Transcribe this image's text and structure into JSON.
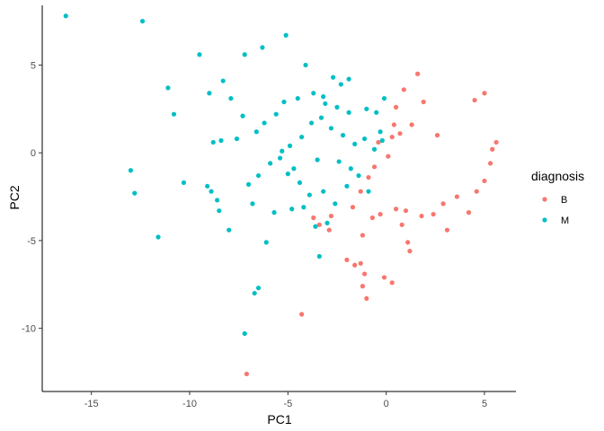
{
  "chart_data": {
    "type": "scatter",
    "title": "",
    "xlabel": "PC1",
    "ylabel": "PC2",
    "xlim": [
      -17.5,
      6.6
    ],
    "ylim": [
      -13.6,
      8.4
    ],
    "x_ticks": [
      -15,
      -10,
      -5,
      0,
      5
    ],
    "y_ticks": [
      5,
      0,
      -5,
      -10
    ],
    "x_tick_labels": [
      "-15",
      "-10",
      "-5",
      "0",
      "5"
    ],
    "y_tick_labels": [
      "5",
      "0",
      "-5",
      "-10"
    ],
    "grid": false,
    "legend": {
      "title": "diagnosis",
      "position": "right"
    },
    "series": [
      {
        "name": "B",
        "color": "#F8766D",
        "points": [
          [
            -7.1,
            -12.6
          ],
          [
            -4.3,
            -9.2
          ],
          [
            -2.0,
            -6.1
          ],
          [
            -1.6,
            -6.4
          ],
          [
            -1.3,
            -6.3
          ],
          [
            -1.1,
            -6.9
          ],
          [
            -1.2,
            -7.6
          ],
          [
            -1.0,
            -8.3
          ],
          [
            -0.1,
            -7.1
          ],
          [
            0.3,
            -7.4
          ],
          [
            -3.4,
            -4.1
          ],
          [
            -2.9,
            -4.4
          ],
          [
            -1.2,
            -4.7
          ],
          [
            0.8,
            -4.1
          ],
          [
            1.1,
            -5.1
          ],
          [
            1.2,
            -5.6
          ],
          [
            -3.7,
            -3.7
          ],
          [
            -2.8,
            -3.6
          ],
          [
            -1.7,
            -3.1
          ],
          [
            -1.3,
            -2.2
          ],
          [
            -0.9,
            -1.4
          ],
          [
            -0.6,
            -0.8
          ],
          [
            0.1,
            -0.2
          ],
          [
            0.3,
            0.9
          ],
          [
            0.4,
            1.6
          ],
          [
            0.5,
            2.6
          ],
          [
            0.9,
            3.6
          ],
          [
            1.6,
            4.5
          ],
          [
            1.9,
            2.9
          ],
          [
            4.5,
            3.0
          ],
          [
            5.0,
            3.4
          ],
          [
            -0.4,
            0.6
          ],
          [
            1.8,
            -3.6
          ],
          [
            2.4,
            -3.5
          ],
          [
            2.9,
            -2.9
          ],
          [
            3.1,
            -4.4
          ],
          [
            3.6,
            -2.5
          ],
          [
            4.2,
            -3.4
          ],
          [
            4.6,
            -2.2
          ],
          [
            5.0,
            -1.6
          ],
          [
            5.3,
            -0.6
          ],
          [
            5.6,
            0.6
          ],
          [
            5.4,
            0.2
          ],
          [
            -0.7,
            -3.7
          ],
          [
            -0.3,
            -3.5
          ],
          [
            0.5,
            -3.2
          ],
          [
            1.0,
            -3.3
          ],
          [
            0.7,
            1.1
          ],
          [
            1.3,
            1.6
          ],
          [
            2.6,
            1.0
          ]
        ]
      },
      {
        "name": "M",
        "color": "#00BFC4",
        "points": [
          [
            -16.3,
            7.8
          ],
          [
            -12.4,
            7.5
          ],
          [
            -9.5,
            5.6
          ],
          [
            -7.2,
            5.6
          ],
          [
            -6.3,
            6.0
          ],
          [
            -5.1,
            6.7
          ],
          [
            -11.1,
            3.7
          ],
          [
            -10.8,
            2.2
          ],
          [
            -9.0,
            3.4
          ],
          [
            -13.0,
            -1.0
          ],
          [
            -12.8,
            -2.3
          ],
          [
            -11.6,
            -4.8
          ],
          [
            -10.3,
            -1.7
          ],
          [
            -9.1,
            -1.9
          ],
          [
            -8.9,
            -2.2
          ],
          [
            -8.6,
            -2.7
          ],
          [
            -8.5,
            -3.3
          ],
          [
            -8.0,
            -4.4
          ],
          [
            -7.2,
            -10.3
          ],
          [
            -6.7,
            -8.0
          ],
          [
            -6.5,
            -7.7
          ],
          [
            -6.1,
            -5.1
          ],
          [
            -5.7,
            -3.4
          ],
          [
            -4.8,
            -3.2
          ],
          [
            -4.2,
            -3.1
          ],
          [
            -3.6,
            -4.2
          ],
          [
            -3.4,
            -5.9
          ],
          [
            -3.0,
            -4.0
          ],
          [
            -8.8,
            0.6
          ],
          [
            -8.4,
            0.7
          ],
          [
            -7.6,
            0.8
          ],
          [
            -7.3,
            2.1
          ],
          [
            -7.9,
            3.1
          ],
          [
            -8.3,
            4.1
          ],
          [
            -4.1,
            5.0
          ],
          [
            -3.2,
            3.2
          ],
          [
            -2.7,
            4.3
          ],
          [
            -2.3,
            3.9
          ],
          [
            -1.9,
            4.2
          ],
          [
            -0.1,
            3.1
          ],
          [
            -6.8,
            -2.9
          ],
          [
            -7.0,
            -1.8
          ],
          [
            -6.5,
            -1.3
          ],
          [
            -5.9,
            -0.6
          ],
          [
            -5.4,
            -0.3
          ],
          [
            -4.9,
            0.4
          ],
          [
            -4.3,
            0.9
          ],
          [
            -3.8,
            1.7
          ],
          [
            -3.3,
            2.0
          ],
          [
            -2.8,
            1.4
          ],
          [
            -2.2,
            1.0
          ],
          [
            -1.6,
            0.5
          ],
          [
            -1.1,
            0.8
          ],
          [
            -0.6,
            0.2
          ],
          [
            -0.3,
            1.2
          ],
          [
            -1.9,
            2.3
          ],
          [
            -2.5,
            2.6
          ],
          [
            -3.1,
            2.8
          ],
          [
            -3.7,
            3.4
          ],
          [
            -4.5,
            3.1
          ],
          [
            -5.2,
            2.9
          ],
          [
            -5.6,
            2.2
          ],
          [
            -6.2,
            1.7
          ],
          [
            -6.6,
            1.2
          ],
          [
            -5.0,
            -1.2
          ],
          [
            -4.4,
            -1.7
          ],
          [
            -3.9,
            -2.4
          ],
          [
            -3.2,
            -2.2
          ],
          [
            -2.6,
            -2.9
          ],
          [
            -2.0,
            -1.9
          ],
          [
            -1.4,
            -1.3
          ],
          [
            -0.9,
            -2.2
          ],
          [
            -2.4,
            -0.5
          ],
          [
            -1.8,
            -0.9
          ],
          [
            -3.5,
            -0.4
          ],
          [
            -4.7,
            -0.9
          ],
          [
            -5.3,
            0.1
          ],
          [
            -0.5,
            2.3
          ],
          [
            -1.0,
            2.5
          ],
          [
            -0.2,
            0.7
          ]
        ]
      }
    ]
  }
}
